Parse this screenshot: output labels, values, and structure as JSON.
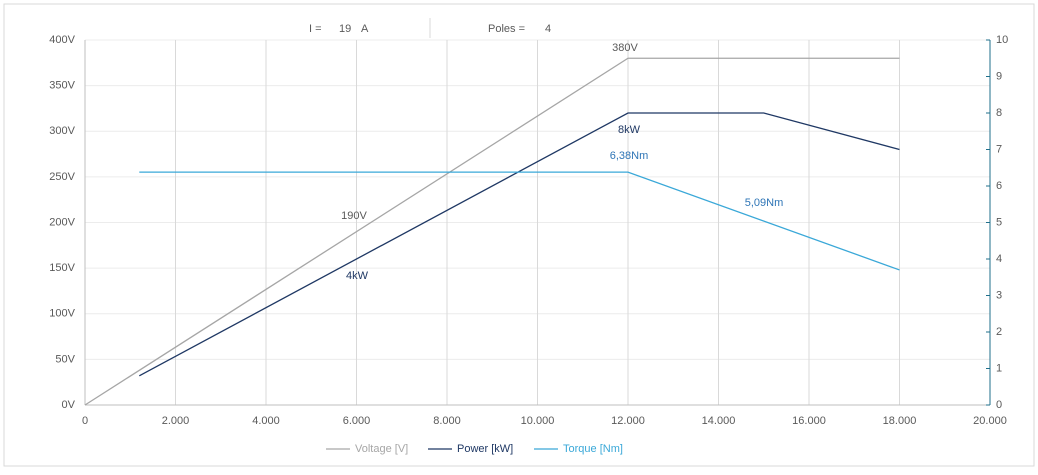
{
  "header": {
    "current_label": "I =",
    "current_value": "19",
    "current_unit": "A",
    "poles_label": "Poles =",
    "poles_value": "4"
  },
  "chart_data": {
    "type": "line",
    "xlim": [
      0,
      20000
    ],
    "xticks": [
      {
        "value": 0,
        "label": "0"
      },
      {
        "value": 2000,
        "label": "2.000"
      },
      {
        "value": 4000,
        "label": "4.000"
      },
      {
        "value": 6000,
        "label": "6.000"
      },
      {
        "value": 8000,
        "label": "8.000"
      },
      {
        "value": 10000,
        "label": "10.000"
      },
      {
        "value": 12000,
        "label": "12.000"
      },
      {
        "value": 14000,
        "label": "14.000"
      },
      {
        "value": 16000,
        "label": "16.000"
      },
      {
        "value": 18000,
        "label": "18.000"
      },
      {
        "value": 20000,
        "label": "20.000"
      }
    ],
    "ylim": [
      0,
      400
    ],
    "yticks": [
      {
        "value": 0,
        "label": "0V"
      },
      {
        "value": 50,
        "label": "50V"
      },
      {
        "value": 100,
        "label": "100V"
      },
      {
        "value": 150,
        "label": "150V"
      },
      {
        "value": 200,
        "label": "200V"
      },
      {
        "value": 250,
        "label": "250V"
      },
      {
        "value": 300,
        "label": "300V"
      },
      {
        "value": 350,
        "label": "350V"
      },
      {
        "value": 400,
        "label": "400V"
      }
    ],
    "y2lim": [
      0,
      10
    ],
    "y2ticks": [
      0,
      1,
      2,
      3,
      4,
      5,
      6,
      7,
      8,
      9,
      10
    ],
    "grid": true,
    "legend": "bottom",
    "series": [
      {
        "name": "Voltage [V]",
        "color": "#a6a6a6",
        "x": [
          0,
          12000,
          18000
        ],
        "values": [
          0,
          380,
          380
        ]
      },
      {
        "name": "Power [kW]",
        "color": "#1f3864",
        "axis": "y2",
        "x": [
          1200,
          12000,
          15000,
          18000
        ],
        "values": [
          0.8,
          8,
          8,
          7
        ]
      },
      {
        "name": "Torque [Nm]",
        "color": "#3aa8d8",
        "axis": "y2",
        "x": [
          1200,
          12000,
          18000
        ],
        "values": [
          6.38,
          6.38,
          3.7
        ]
      }
    ],
    "annotations": [
      "380V",
      "190V",
      "4kW",
      "8kW",
      "6,38Nm",
      "5,09Nm"
    ]
  }
}
